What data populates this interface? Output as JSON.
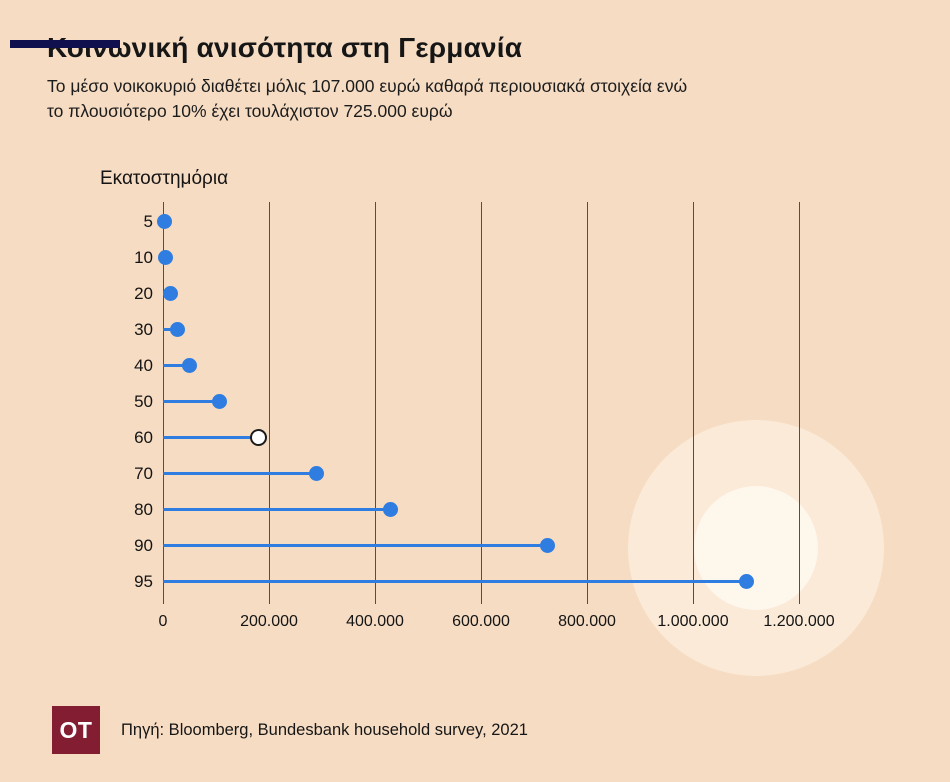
{
  "page": {
    "title": "Κοινωνική ανισότητα στη Γερμανία",
    "subtitle_lines": [
      "Το μέσο νοικοκυριό διαθέτει μόλις 107.000 ευρώ καθαρά περιουσιακά στοιχεία ενώ",
      "το πλουσιότερο 10% έχει τουλάχιστον 725.000 ευρώ"
    ]
  },
  "chart_data": {
    "type": "lollipop",
    "title": "Κοινωνική ανισότητα στη Γερμανία",
    "ylabel": "Εκατοστημόρια",
    "xlabel": "",
    "categories": [
      "5",
      "10",
      "20",
      "30",
      "40",
      "50",
      "60",
      "70",
      "80",
      "90",
      "95"
    ],
    "values": [
      2000,
      5000,
      15000,
      27000,
      50000,
      107000,
      180000,
      290000,
      430000,
      725000,
      1100000
    ],
    "highlight_category": "60",
    "xlim": [
      0,
      1200000
    ],
    "x_ticks": [
      0,
      200000,
      400000,
      600000,
      800000,
      1000000,
      1200000
    ],
    "x_tick_labels": [
      "0",
      "200.000",
      "400.000",
      "600.000",
      "800.000",
      "1.000.000",
      "1.200.000"
    ],
    "grid": "vertical",
    "colors": {
      "dot": "#2f7de1",
      "stem": "#2f7de1",
      "highlight_fill": "#ffffff",
      "highlight_stroke": "#1b1b1b",
      "gridline": "#4f4f4f",
      "background": "#f6dcc3",
      "brand_bar": "#10104e",
      "logo_bg": "#831d32"
    }
  },
  "footer": {
    "logo_text": "OT",
    "source": "Πηγή: Bloomberg, Bundesbank household survey, 2021"
  }
}
